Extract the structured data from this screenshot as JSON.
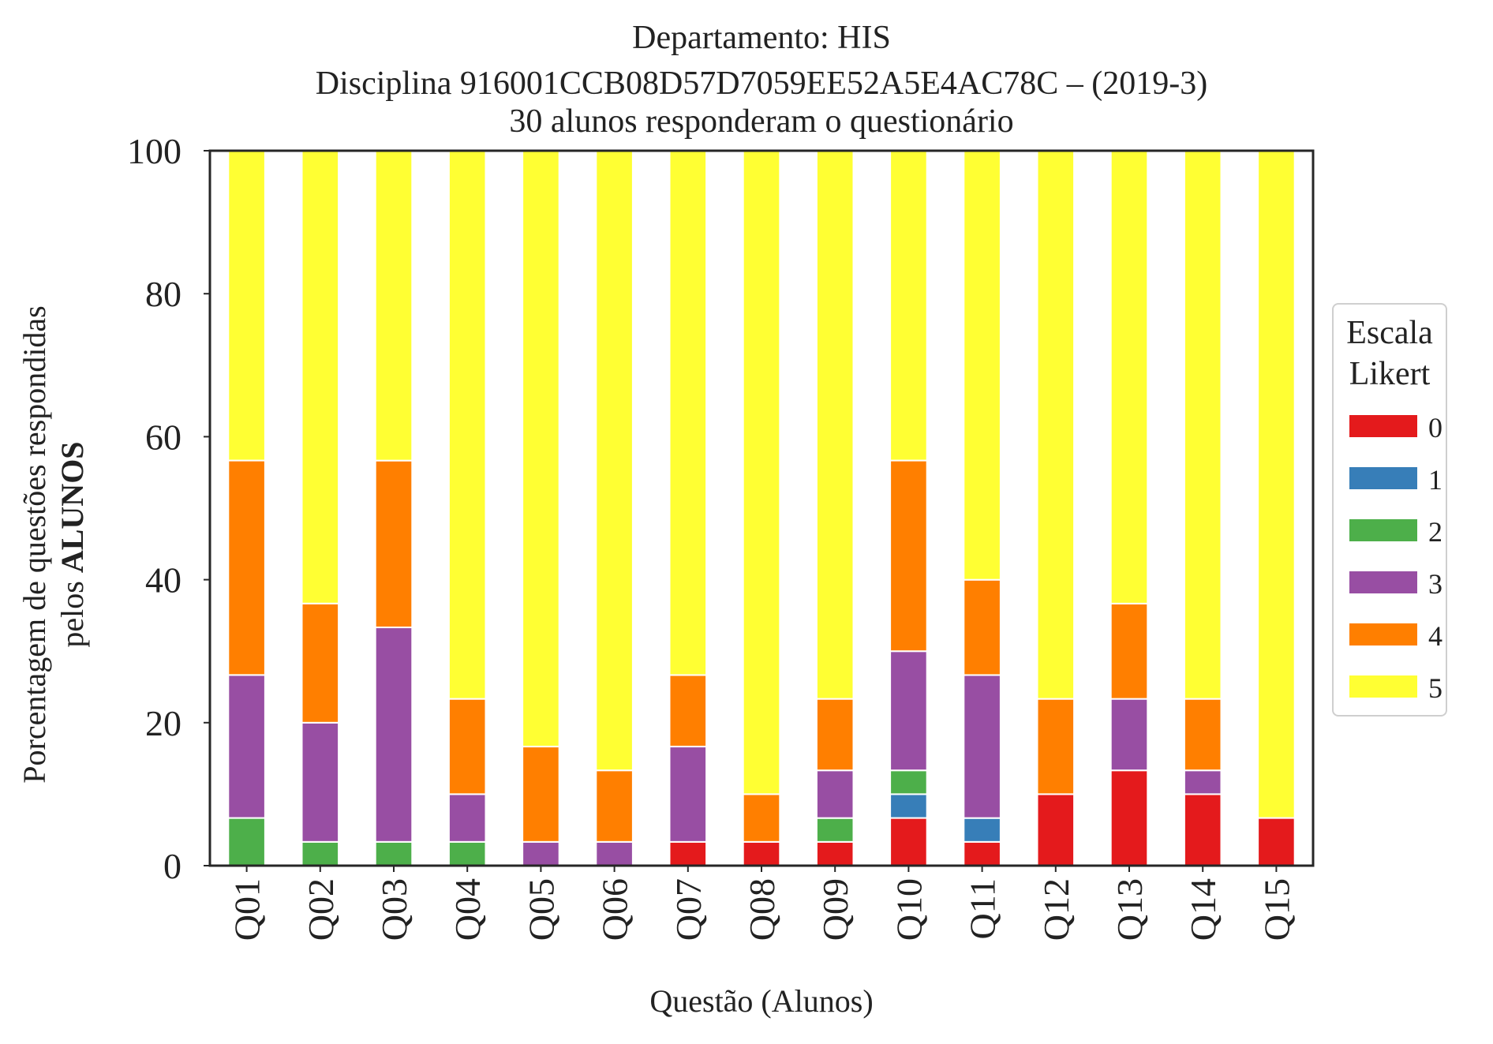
{
  "chart_data": {
    "type": "bar",
    "stacked": true,
    "title_lines": [
      "Departamento: HIS",
      "Disciplina 916001CCB08D57D7059EE52A5E4AC78C – (2019-3)",
      "30 alunos responderam o questionário"
    ],
    "ylabel_line1": "Porcentagem de questões respondidas",
    "ylabel_line2_prefix": "pelos ",
    "ylabel_line2_bold": "ALUNOS",
    "xlabel": "Questão (Alunos)",
    "ylim": [
      0,
      100
    ],
    "yticks": [
      "0",
      "20",
      "40",
      "60",
      "80",
      "100"
    ],
    "grid": false,
    "legend": {
      "title_line1": "Escala",
      "title_line2": "Likert",
      "placement": "right"
    },
    "categories": [
      "Q01",
      "Q02",
      "Q03",
      "Q04",
      "Q05",
      "Q06",
      "Q07",
      "Q08",
      "Q09",
      "Q10",
      "Q11",
      "Q12",
      "Q13",
      "Q14",
      "Q15"
    ],
    "series": [
      {
        "name": "0",
        "color": "#e41a1c",
        "values": [
          0,
          0,
          0,
          0,
          0,
          0,
          3.33,
          3.33,
          3.33,
          6.67,
          3.33,
          10.0,
          13.33,
          10.0,
          6.67
        ]
      },
      {
        "name": "1",
        "color": "#377eb8",
        "values": [
          0,
          0,
          0,
          0,
          0,
          0,
          0,
          0,
          0,
          3.33,
          3.33,
          0,
          0,
          0,
          0
        ]
      },
      {
        "name": "2",
        "color": "#4daf4a",
        "values": [
          6.67,
          3.33,
          3.33,
          3.33,
          0,
          0,
          0,
          0,
          3.33,
          3.33,
          0,
          0,
          0,
          0,
          0
        ]
      },
      {
        "name": "3",
        "color": "#984ea3",
        "values": [
          20.0,
          16.67,
          30.0,
          6.67,
          3.33,
          3.33,
          13.33,
          0,
          6.67,
          16.67,
          20.0,
          0,
          10.0,
          3.33,
          0
        ]
      },
      {
        "name": "4",
        "color": "#ff7f00",
        "values": [
          30.0,
          16.67,
          23.33,
          13.33,
          13.33,
          10.0,
          10.0,
          6.67,
          10.0,
          26.67,
          13.33,
          13.33,
          13.33,
          10.0,
          0
        ]
      },
      {
        "name": "5",
        "color": "#ffff33",
        "values": [
          43.33,
          63.33,
          43.33,
          76.67,
          83.33,
          86.67,
          73.33,
          90.0,
          76.67,
          43.33,
          60.0,
          76.67,
          63.33,
          76.67,
          93.33
        ]
      }
    ]
  }
}
